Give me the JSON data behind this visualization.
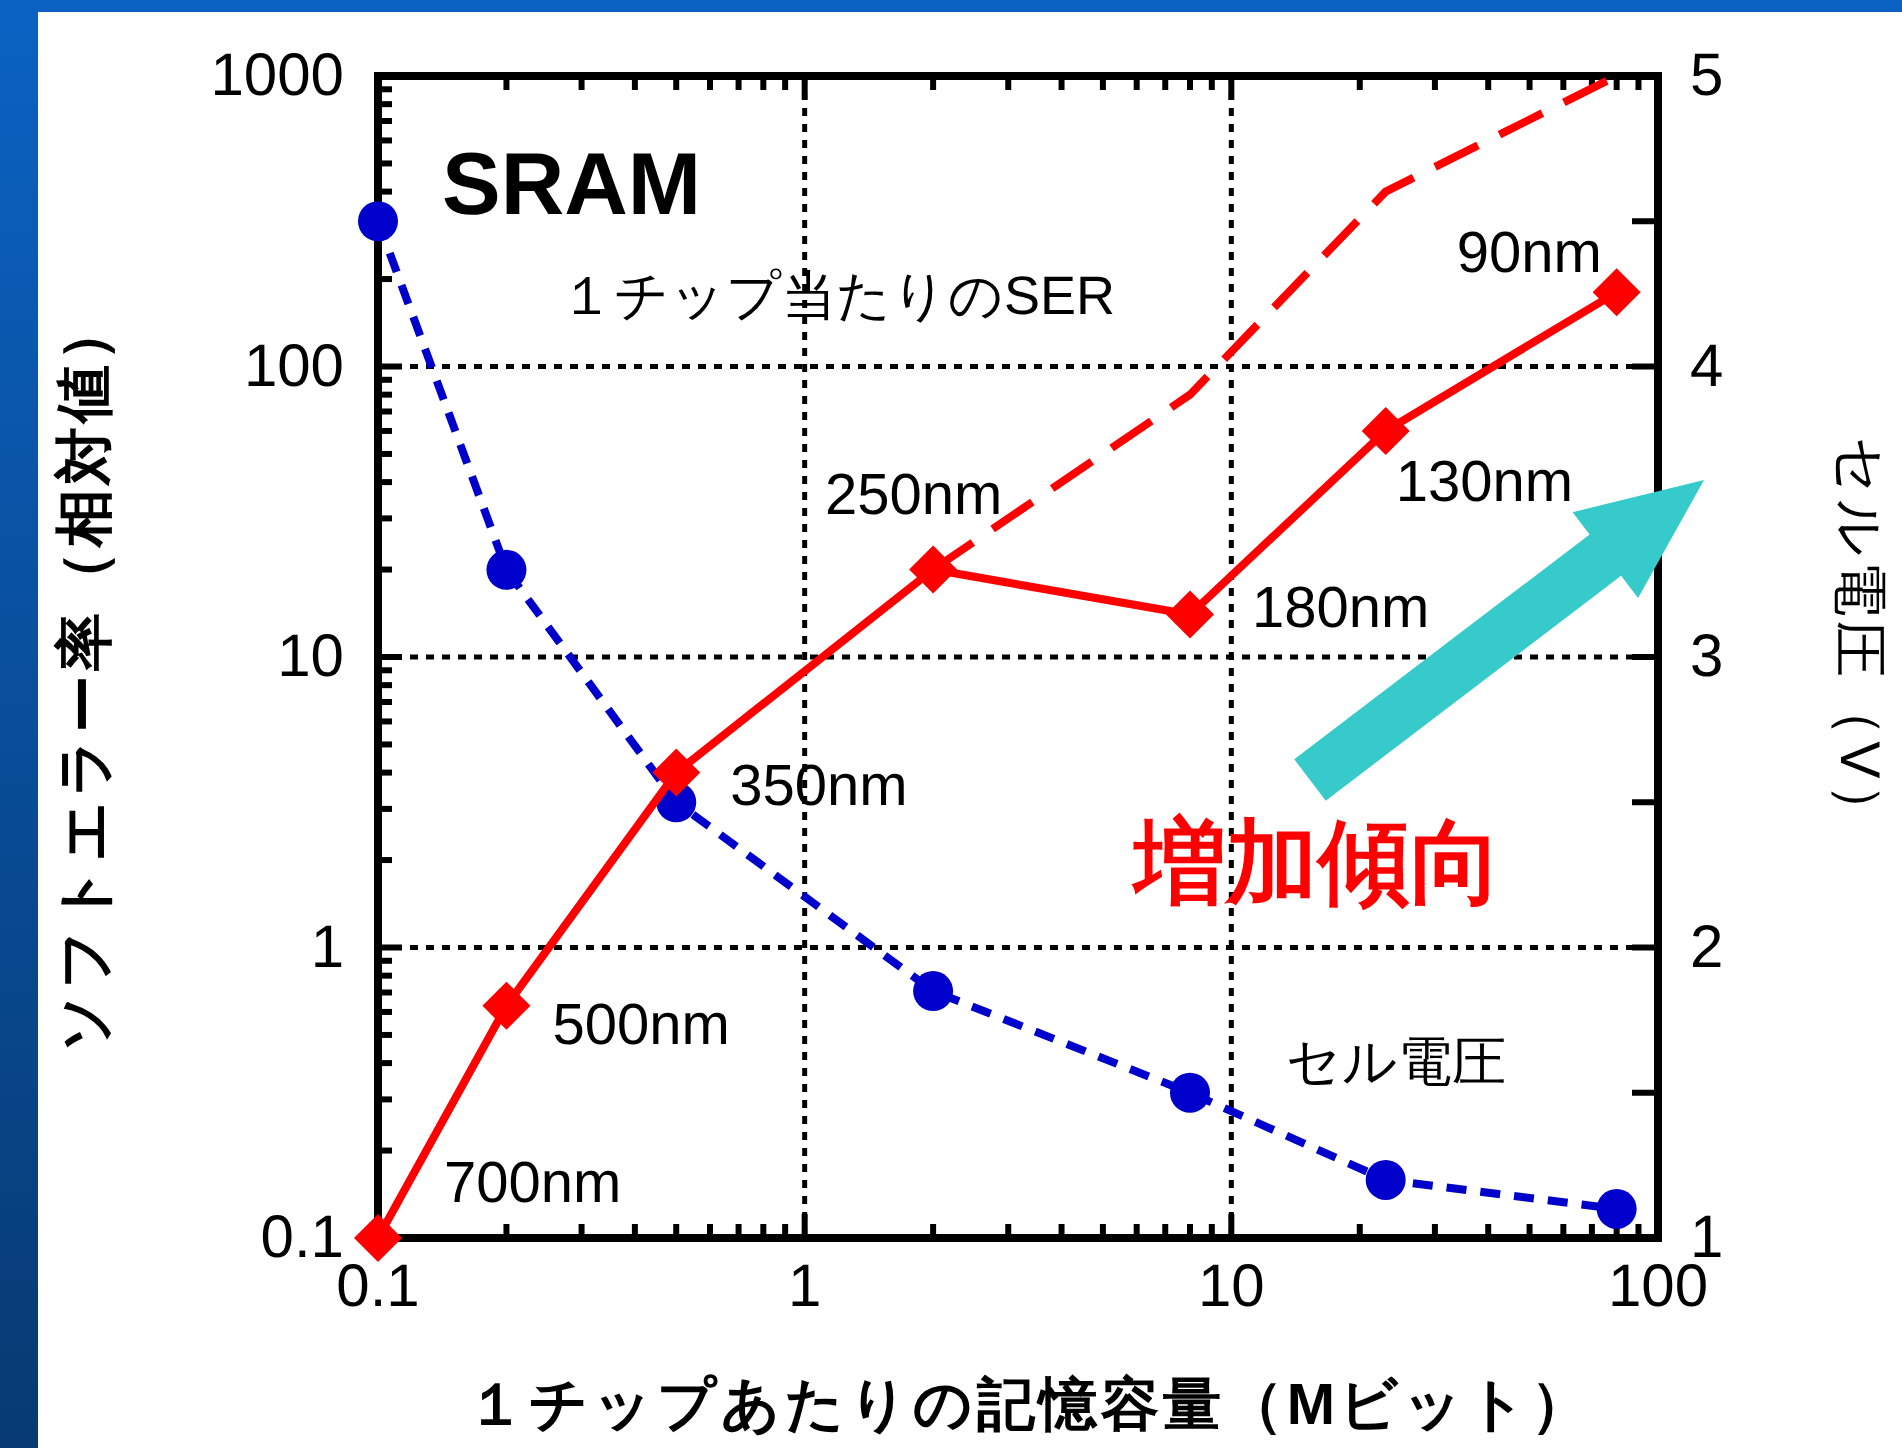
{
  "chart_data": {
    "type": "line",
    "title": "SRAM",
    "xlabel": "１チップあたりの記憶容量（Mビット）",
    "ylabel": "ソフトエラー率（相対値）",
    "y2label": "セル電圧（V）",
    "log": "xy",
    "grid": true,
    "xlim": [
      0.1,
      100
    ],
    "xticks": [
      0.1,
      {
        "value": 0.2,
        "label": null
      },
      {
        "value": 0.3,
        "label": null
      },
      {
        "value": 0.4,
        "label": null
      },
      {
        "value": 0.5,
        "label": null
      },
      {
        "value": 0.6,
        "label": null
      },
      {
        "value": 0.7,
        "label": null
      },
      {
        "value": 0.8,
        "label": null
      },
      {
        "value": 0.9,
        "label": null
      },
      1,
      {
        "value": 2,
        "label": null
      },
      {
        "value": 3,
        "label": null
      },
      {
        "value": 4,
        "label": null
      },
      {
        "value": 5,
        "label": null
      },
      {
        "value": 6,
        "label": null
      },
      {
        "value": 7,
        "label": null
      },
      {
        "value": 8,
        "label": null
      },
      {
        "value": 9,
        "label": null
      },
      10,
      {
        "value": 20,
        "label": null
      },
      {
        "value": 30,
        "label": null
      },
      {
        "value": 40,
        "label": null
      },
      {
        "value": 50,
        "label": null
      },
      {
        "value": 60,
        "label": null
      },
      {
        "value": 70,
        "label": null
      },
      {
        "value": 80,
        "label": null
      },
      {
        "value": 90,
        "label": null
      },
      100
    ],
    "ylim": [
      0.1,
      1000
    ],
    "yticks": [
      0.1,
      {
        "value": 0.2,
        "label": null
      },
      {
        "value": 0.3,
        "label": null
      },
      {
        "value": 0.4,
        "label": null
      },
      {
        "value": 0.5,
        "label": null
      },
      {
        "value": 0.6,
        "label": null
      },
      {
        "value": 0.7,
        "label": null
      },
      {
        "value": 0.8,
        "label": null
      },
      {
        "value": 0.9,
        "label": null
      },
      1,
      {
        "value": 2,
        "label": null
      },
      {
        "value": 3,
        "label": null
      },
      {
        "value": 4,
        "label": null
      },
      {
        "value": 5,
        "label": null
      },
      {
        "value": 6,
        "label": null
      },
      {
        "value": 7,
        "label": null
      },
      {
        "value": 8,
        "label": null
      },
      {
        "value": 9,
        "label": null
      },
      10,
      {
        "value": 20,
        "label": null
      },
      {
        "value": 30,
        "label": null
      },
      {
        "value": 40,
        "label": null
      },
      {
        "value": 50,
        "label": null
      },
      {
        "value": 60,
        "label": null
      },
      {
        "value": 70,
        "label": null
      },
      {
        "value": 80,
        "label": null
      },
      {
        "value": 90,
        "label": null
      },
      100,
      {
        "value": 200,
        "label": null
      },
      {
        "value": 300,
        "label": null
      },
      {
        "value": 400,
        "label": null
      },
      {
        "value": 500,
        "label": null
      },
      {
        "value": 600,
        "label": null
      },
      {
        "value": 700,
        "label": null
      },
      {
        "value": 800,
        "label": null
      },
      {
        "value": 900,
        "label": null
      },
      1000
    ],
    "y2lim": [
      1,
      5
    ],
    "y2ticks": [
      1,
      {
        "value": 1.5,
        "label": null
      },
      2,
      {
        "value": 2.5,
        "label": null
      },
      3,
      {
        "value": 3.5,
        "label": null
      },
      4,
      {
        "value": 4.5,
        "label": null
      },
      5
    ],
    "series": [
      {
        "name": "セル電圧",
        "color": "#0000cc",
        "axis": "y2",
        "x": [
          0.1,
          0.2,
          0.5,
          2,
          8,
          23,
          80
        ],
        "values": [
          4.5,
          3.3,
          2.5,
          1.85,
          1.5,
          1.2,
          1.1
        ],
        "marker": "circle",
        "line_style": "dotted"
      },
      {
        "color": "#ff0000",
        "x": [
          0.1,
          0.2,
          0.5,
          2,
          8,
          23,
          80
        ],
        "values": [
          0.1,
          0.63,
          4,
          20,
          14,
          60,
          180
        ],
        "marker": "diamond",
        "line_style": "solid"
      },
      {
        "color": "#ff0000",
        "x": [
          2,
          8,
          23,
          80
        ],
        "values": [
          20,
          80,
          400,
          1000
        ],
        "marker": "none",
        "line_style": "dashed"
      }
    ],
    "annotations": [
      {
        "text": "700nm",
        "x": 0.1,
        "y": 0.1
      },
      {
        "text": "500nm",
        "x": 0.2,
        "y": 0.63
      },
      {
        "text": "350nm",
        "x": 0.5,
        "y": 4
      },
      {
        "text": "250nm",
        "x": 2,
        "y": 20
      },
      {
        "text": "180nm",
        "x": 8,
        "y": 14
      },
      {
        "text": "130nm",
        "x": 23,
        "y": 60
      },
      {
        "text": "90nm",
        "x": 80,
        "y": 180
      },
      "増加傾向",
      "１チップ当たりのSER"
    ]
  }
}
